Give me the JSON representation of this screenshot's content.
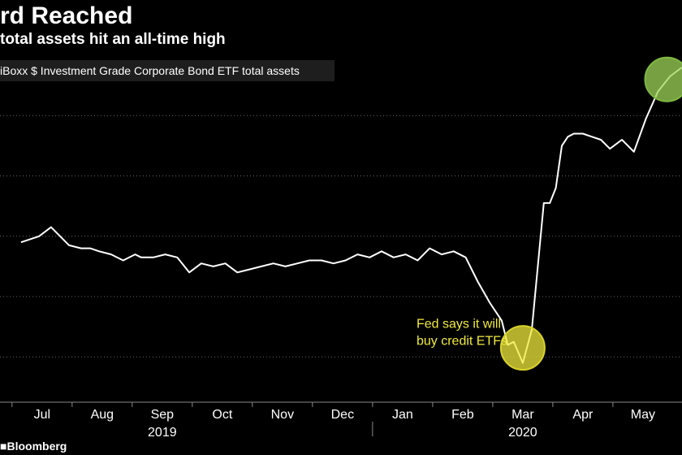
{
  "chart_data": {
    "type": "line",
    "title": "rd Reached",
    "subtitle": "total assets hit an all-time high",
    "series": [
      {
        "name": "iBoxx $ Investment Grade Corporate Bond ETF total assets",
        "color": "#ffffff",
        "x": [
          0.0,
          0.3,
          0.5,
          0.8,
          1.0,
          1.15,
          1.3,
          1.5,
          1.7,
          1.9,
          2.0,
          2.2,
          2.4,
          2.6,
          2.8,
          3.0,
          3.2,
          3.4,
          3.6,
          3.8,
          4.0,
          4.2,
          4.4,
          4.6,
          4.8,
          5.0,
          5.2,
          5.4,
          5.6,
          5.8,
          6.0,
          6.2,
          6.4,
          6.6,
          6.8,
          7.0,
          7.2,
          7.4,
          7.6,
          7.8,
          7.9,
          8.0,
          8.1,
          8.2,
          8.35,
          8.5,
          8.6,
          8.7,
          8.8,
          8.9,
          9.0,
          9.1,
          9.2,
          9.35,
          9.5,
          9.65,
          9.8,
          10.0,
          10.2,
          10.4,
          10.6,
          10.8,
          11.0
        ],
        "y": [
          -0.2,
          0.0,
          0.3,
          -0.3,
          -0.4,
          -0.4,
          -0.5,
          -0.6,
          -0.8,
          -0.6,
          -0.7,
          -0.7,
          -0.6,
          -0.7,
          -1.2,
          -0.9,
          -1.0,
          -0.9,
          -1.2,
          -1.1,
          -1.0,
          -0.9,
          -1.0,
          -0.9,
          -0.8,
          -0.8,
          -0.9,
          -0.8,
          -0.6,
          -0.7,
          -0.5,
          -0.7,
          -0.6,
          -0.8,
          -0.4,
          -0.6,
          -0.5,
          -0.7,
          -1.5,
          -2.2,
          -2.5,
          -2.8,
          -3.6,
          -3.5,
          -4.2,
          -3.1,
          -1.0,
          1.1,
          1.1,
          1.6,
          3.0,
          3.3,
          3.4,
          3.4,
          3.3,
          3.2,
          2.9,
          3.2,
          2.8,
          3.9,
          4.8,
          5.3,
          5.6
        ]
      }
    ],
    "x_ticks": [
      "Jul",
      "Aug",
      "Sep",
      "Oct",
      "Nov",
      "Dec",
      "Jan",
      "Feb",
      "Mar",
      "Apr",
      "May"
    ],
    "x_tick_values": [
      0.35,
      1.35,
      2.35,
      3.35,
      4.35,
      5.35,
      6.35,
      7.35,
      8.35,
      9.35,
      10.35
    ],
    "year_labels": [
      {
        "label": "2019",
        "x": 2.35
      },
      {
        "label": "2020",
        "x": 8.35
      }
    ],
    "year_divider_x": 5.85,
    "xlim": [
      -0.35,
      11.0
    ],
    "ylim": [
      -5.5,
      6.0
    ],
    "grid_y": [
      -4.0,
      -2.0,
      0.0,
      2.0,
      4.0
    ],
    "yticks_labeled": false,
    "grid": true,
    "legend": "top-left",
    "annotations": [
      {
        "text_lines": [
          "Fed says it will",
          "buy credit ETFs"
        ],
        "x": 8.0,
        "y": -3.2,
        "color": "#f0ea3c"
      }
    ],
    "highlights": [
      {
        "x": 8.35,
        "y": -3.7,
        "fill": "#f0ea3c",
        "stroke": "#d8d22a"
      },
      {
        "x": 10.75,
        "y": 5.2,
        "fill": "#9fd65a",
        "stroke": "#7fb840"
      }
    ]
  },
  "source": "Bloomberg"
}
